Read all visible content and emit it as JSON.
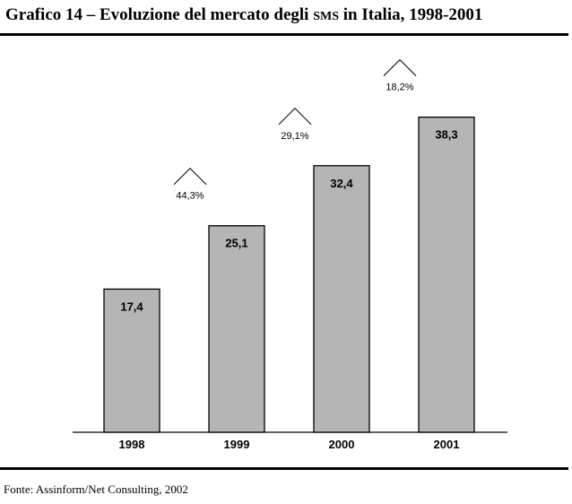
{
  "header": {
    "title_part1": "Grafico 14 – Evoluzione del mercato degli ",
    "title_sc": "SMS",
    "title_part2": " in Italia, 1998-2001"
  },
  "footer": {
    "source": "Fonte: Assinform/Net Consulting, 2002"
  },
  "chart_data": {
    "type": "bar",
    "title": "Grafico 14 – Evoluzione del mercato degli SMS in Italia, 1998-2001",
    "categories": [
      "1998",
      "1999",
      "2000",
      "2001"
    ],
    "values": [
      17.4,
      25.1,
      32.4,
      38.3
    ],
    "value_labels": [
      "17,4",
      "25,1",
      "32,4",
      "38,3"
    ],
    "growth_labels": [
      "44,3%",
      "29,1%",
      "18,2%"
    ],
    "xlabel": "",
    "ylabel": "",
    "ylim": [
      0,
      46
    ],
    "grid": false,
    "bar_color": "#b5b5b5"
  }
}
